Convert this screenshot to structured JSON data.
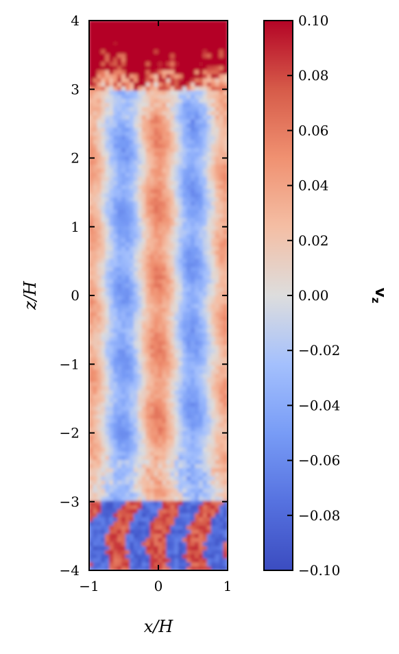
{
  "chart_data": {
    "type": "heatmap",
    "title": "",
    "xlabel": "x/H",
    "ylabel": "z/H",
    "xlim": [
      -1,
      1
    ],
    "ylim": [
      -4,
      4
    ],
    "x_ticks": [
      -1,
      0,
      1
    ],
    "x_tick_labels": [
      "−1",
      "0",
      "1"
    ],
    "y_ticks": [
      -4,
      -3,
      -2,
      -1,
      0,
      1,
      2,
      3,
      4
    ],
    "y_tick_labels": [
      "−4",
      "−3",
      "−2",
      "−1",
      "0",
      "1",
      "2",
      "3",
      "4"
    ],
    "colorbar": {
      "label": "v",
      "label_subscript": "z",
      "colormap": "coolwarm",
      "range": [
        -0.1,
        0.1
      ],
      "ticks": [
        -0.1,
        -0.08,
        -0.06,
        -0.04,
        -0.02,
        0.0,
        0.02,
        0.04,
        0.06,
        0.08,
        0.1
      ],
      "tick_labels": [
        "−0.10",
        "−0.08",
        "−0.06",
        "−0.04",
        "−0.02",
        "0.00",
        "0.02",
        "0.04",
        "0.06",
        "0.08",
        "0.10"
      ],
      "placement": "right",
      "colors": {
        "min": "#3b4cc0",
        "mid": "#dddddd",
        "max": "#b40426"
      }
    },
    "field_description": {
      "structure": "vertical columns of alternating sign velocity",
      "columns": [
        {
          "x": -1.0,
          "vz": 0.04
        },
        {
          "x": -0.5,
          "vz": -0.045
        },
        {
          "x": 0.0,
          "vz": 0.05
        },
        {
          "x": 0.5,
          "vz": -0.045
        },
        {
          "x": 1.0,
          "vz": 0.04
        }
      ],
      "top_region": {
        "z_from": 3.0,
        "z_to": 4.0,
        "vz": 0.1
      },
      "bottom_region": {
        "z_from": -4.0,
        "z_to": -3.0,
        "vz_extremes": [
          -0.1,
          0.1
        ]
      }
    }
  }
}
